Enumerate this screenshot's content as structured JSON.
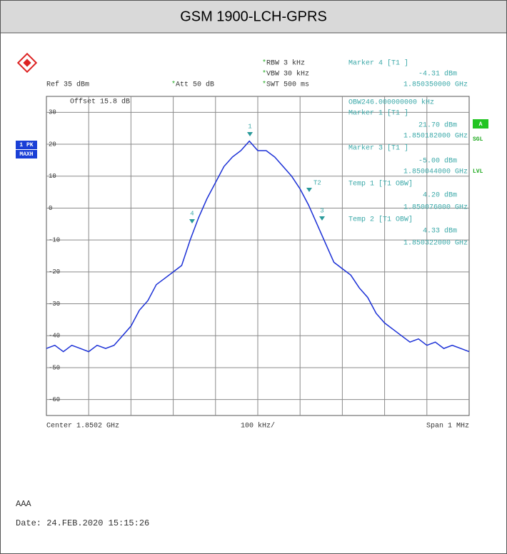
{
  "header": {
    "title": "GSM 1900-LCH-GPRS"
  },
  "settings": {
    "rbw": "RBW 3 kHz",
    "vbw": "VBW 30 kHz",
    "swt": "SWT 500 ms",
    "ref": "Ref 35 dBm",
    "att": "Att 50 dB",
    "offset": "Offset 15.8 dB"
  },
  "marker_panel": [
    "Marker 4 [T1 ]",
    "-4.31 dBm",
    "1.850350000 GHz",
    "OBW246.000000000 kHz",
    "Marker 1 [T1 ]",
    "21.70 dBm",
    "1.850182000 GHz",
    "Marker 3 [T1 ]",
    "-5.00 dBm",
    "1.850044000 GHz",
    "Temp 1 [T1 OBW]",
    "4.20 dBm",
    "1.850076000 GHz",
    "Temp 2 [T1 OBW]",
    "4.33 dBm",
    "1.850322000 GHz"
  ],
  "side_labels": {
    "trace": "1 PK",
    "mode": "MAXH",
    "a": "A",
    "sgl": "SGL",
    "lvl": "LVL"
  },
  "footer_axis": {
    "center": "Center 1.8502 GHz",
    "div": "100 kHz/",
    "span": "Span 1 MHz"
  },
  "notes": {
    "name": "AAA",
    "date": "Date: 24.FEB.2020  15:15:26"
  },
  "chart_data": {
    "type": "line",
    "x": [
      1849.7,
      1849.72,
      1849.74,
      1849.76,
      1849.78,
      1849.8,
      1849.82,
      1849.84,
      1849.86,
      1849.88,
      1849.9,
      1849.92,
      1849.94,
      1849.96,
      1849.98,
      1850.0,
      1850.02,
      1850.04,
      1850.06,
      1850.08,
      1850.1,
      1850.12,
      1850.14,
      1850.16,
      1850.18,
      1850.2,
      1850.22,
      1850.24,
      1850.26,
      1850.28,
      1850.3,
      1850.32,
      1850.34,
      1850.36,
      1850.38,
      1850.4,
      1850.42,
      1850.44,
      1850.46,
      1850.48,
      1850.5,
      1850.52,
      1850.54,
      1850.56,
      1850.58,
      1850.6,
      1850.62,
      1850.64,
      1850.66,
      1850.68,
      1850.7
    ],
    "series": [
      {
        "name": "1 PK",
        "color": "#1a2fd6",
        "values": [
          -44,
          -43,
          -45,
          -43,
          -44,
          -45,
          -43,
          -44,
          -43,
          -40,
          -37,
          -32,
          -29,
          -24,
          -22,
          -20,
          -18,
          -10,
          -3,
          3,
          8,
          13,
          16,
          18,
          21,
          18,
          18,
          16,
          13,
          10,
          6,
          1,
          -5,
          -11,
          -17,
          -19,
          -21,
          -25,
          -28,
          -33,
          -36,
          -38,
          -40,
          -42,
          -41,
          -43,
          -42,
          -44,
          -43,
          -44,
          -45
        ]
      }
    ],
    "xlim": [
      1849.7,
      1850.7
    ],
    "ylim": [
      -65,
      35
    ],
    "yticks": [
      30,
      20,
      10,
      0,
      -10,
      -20,
      -30,
      -40,
      -50,
      -60
    ],
    "markers": [
      "1",
      "T2",
      "4",
      "3"
    ],
    "grid": true
  }
}
